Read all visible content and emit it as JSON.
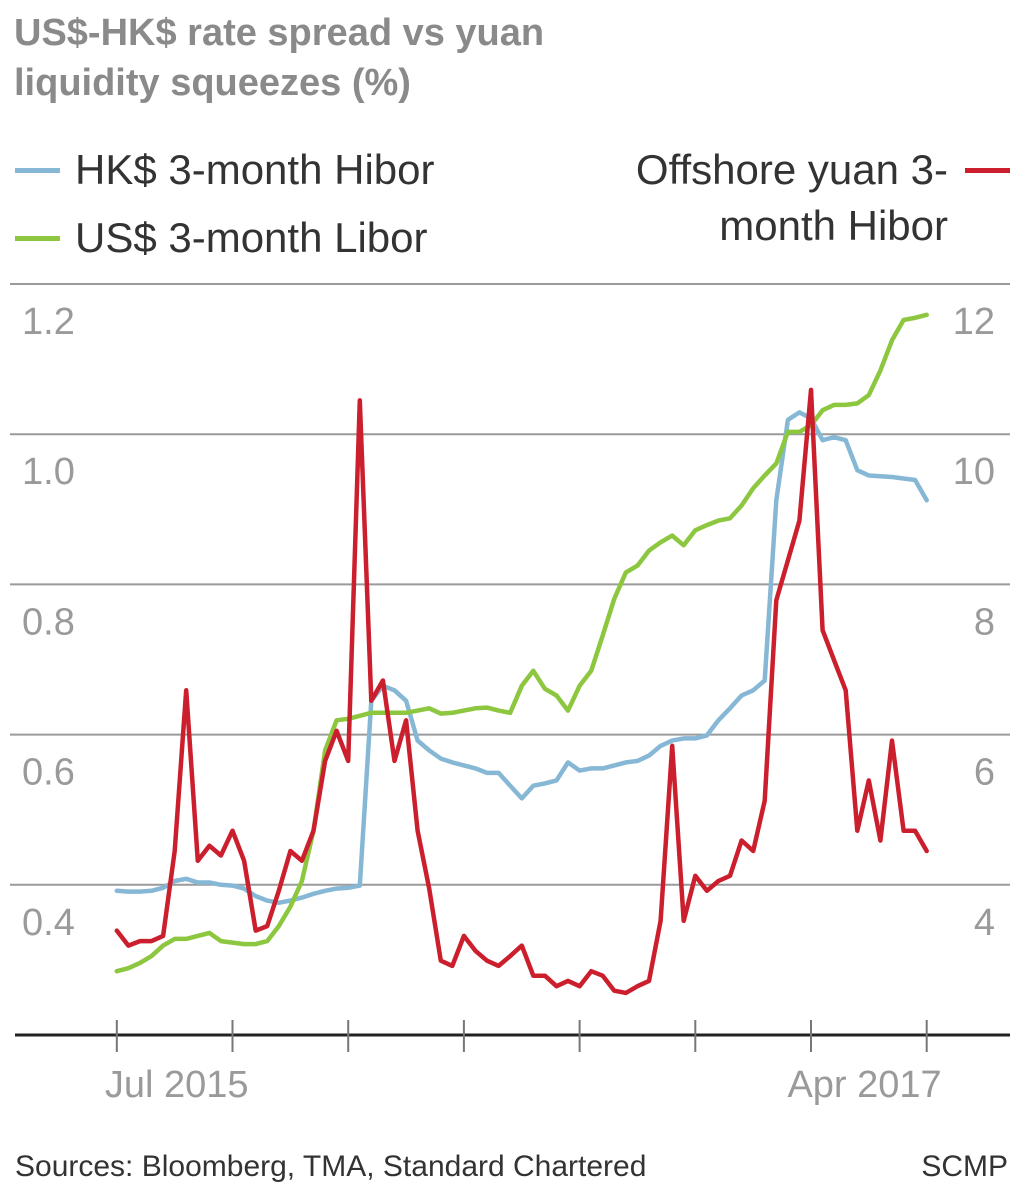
{
  "chart_data": {
    "type": "line",
    "title": "US$-HK$ rate spread vs yuan liquidity squeezes (%)",
    "source": "Sources: Bloomberg, TMA, Standard Chartered",
    "credit": "SCMP",
    "x": [
      2015.5,
      2015.525,
      2015.55,
      2015.575,
      2015.6,
      2015.625,
      2015.65,
      2015.675,
      2015.7,
      2015.725,
      2015.75,
      2015.775,
      2015.8,
      2015.825,
      2015.85,
      2015.875,
      2015.9,
      2015.925,
      2015.95,
      2015.975,
      2016,
      2016.025,
      2016.05,
      2016.075,
      2016.1,
      2016.125,
      2016.15,
      2016.175,
      2016.2,
      2016.225,
      2016.25,
      2016.275,
      2016.3,
      2016.325,
      2016.35,
      2016.375,
      2016.4,
      2016.425,
      2016.45,
      2016.475,
      2016.5,
      2016.525,
      2016.55,
      2016.575,
      2016.6,
      2016.625,
      2016.65,
      2016.675,
      2016.7,
      2016.725,
      2016.75,
      2016.775,
      2016.8,
      2016.825,
      2016.85,
      2016.875,
      2016.9,
      2016.925,
      2016.95,
      2016.975,
      2017,
      2017.025,
      2017.05,
      2017.075,
      2017.1,
      2017.125,
      2017.15,
      2017.175,
      2017.2,
      2017.225,
      2017.25
    ],
    "series": [
      {
        "name": "HK$ 3-month Hibor",
        "color": "#86b8d6",
        "values": [
          0.392,
          0.391,
          0.391,
          0.392,
          0.396,
          0.405,
          0.408,
          0.403,
          0.403,
          0.4,
          0.399,
          0.395,
          0.385,
          0.379,
          0.376,
          0.379,
          0.383,
          0.388,
          0.392,
          0.395,
          0.396,
          0.399,
          0.645,
          0.665,
          0.659,
          0.645,
          0.592,
          0.579,
          0.568,
          0.563,
          0.559,
          0.555,
          0.549,
          0.549,
          0.532,
          0.515,
          0.532,
          0.535,
          0.539,
          0.563,
          0.552,
          0.555,
          0.555,
          0.559,
          0.563,
          0.565,
          0.572,
          0.585,
          0.592,
          0.595,
          0.595,
          0.599,
          0.619,
          0.635,
          0.652,
          0.659,
          0.672,
          0.912,
          1.019,
          1.029,
          1.021,
          0.992,
          0.996,
          0.992,
          0.952,
          0.945,
          0.944,
          0.943,
          0.941,
          0.939,
          0.912
        ]
      },
      {
        "name": "US$ 3-month Libor",
        "color": "#8dc63f",
        "values": [
          0.285,
          0.289,
          0.296,
          0.305,
          0.319,
          0.328,
          0.328,
          0.332,
          0.336,
          0.325,
          0.323,
          0.321,
          0.321,
          0.325,
          0.345,
          0.371,
          0.405,
          0.472,
          0.579,
          0.619,
          0.621,
          0.625,
          0.629,
          0.629,
          0.629,
          0.629,
          0.632,
          0.635,
          0.628,
          0.629,
          0.632,
          0.635,
          0.636,
          0.632,
          0.629,
          0.665,
          0.685,
          0.661,
          0.652,
          0.632,
          0.665,
          0.685,
          0.732,
          0.781,
          0.816,
          0.825,
          0.845,
          0.856,
          0.865,
          0.852,
          0.872,
          0.879,
          0.885,
          0.888,
          0.905,
          0.928,
          0.945,
          0.961,
          1.003,
          1.003,
          1.012,
          1.032,
          1.039,
          1.039,
          1.041,
          1.052,
          1.085,
          1.125,
          1.152,
          1.155,
          1.159
        ]
      },
      {
        "name": "Offshore yuan 3-month Hibor",
        "color": "#cc1f2d",
        "axis": "y2",
        "values": [
          3.39,
          3.19,
          3.25,
          3.25,
          3.32,
          4.45,
          6.59,
          4.32,
          4.52,
          4.39,
          4.72,
          4.32,
          3.39,
          3.45,
          3.92,
          4.45,
          4.32,
          4.72,
          5.65,
          6.05,
          5.65,
          10.45,
          6.45,
          6.72,
          5.65,
          6.19,
          4.72,
          3.95,
          2.99,
          2.92,
          3.32,
          3.12,
          2.99,
          2.92,
          3.05,
          3.19,
          2.79,
          2.79,
          2.65,
          2.72,
          2.65,
          2.85,
          2.79,
          2.59,
          2.56,
          2.65,
          2.72,
          3.52,
          5.85,
          3.52,
          4.12,
          3.92,
          4.05,
          4.12,
          4.59,
          4.45,
          5.12,
          7.79,
          8.32,
          8.85,
          10.59,
          7.39,
          6.99,
          6.59,
          4.72,
          5.39,
          4.59,
          5.92,
          4.72,
          4.72,
          4.45
        ]
      }
    ],
    "xlim": [
      2015.28,
      2017.43
    ],
    "xticks": [
      {
        "value": 2015.5,
        "label": "Jul 2015"
      },
      {
        "value": 2015.75,
        "label": null
      },
      {
        "value": 2016,
        "label": null
      },
      {
        "value": 2016.25,
        "label": null
      },
      {
        "value": 2016.5,
        "label": null
      },
      {
        "value": 2016.75,
        "label": null
      },
      {
        "value": 2017,
        "label": null
      },
      {
        "value": 2017.25,
        "label": "Apr 2017"
      }
    ],
    "ylim": [
      0.2,
      1.2
    ],
    "yticks": [
      0.4,
      0.6,
      0.8,
      {
        "value": 1,
        "label": "1.0"
      },
      1.2
    ],
    "y2lim": [
      2,
      12
    ],
    "y2ticks": [
      4,
      6,
      8,
      10,
      12
    ],
    "grid": true
  }
}
